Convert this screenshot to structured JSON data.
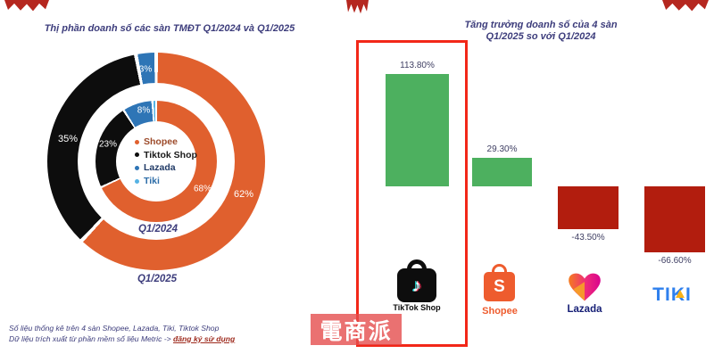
{
  "titles": {
    "left": "Thị phần doanh số các sàn TMĐT Q1/2024 và Q1/2025",
    "right_line1": "Tăng trưởng doanh số của 4 sàn",
    "right_line2": "Q1/2025 so với Q1/2024"
  },
  "chart_data": [
    {
      "type": "pie",
      "subtype": "double-ring-donut",
      "title": "Thị phần doanh số các sàn TMĐT Q1/2024 và Q1/2025",
      "legend": [
        "Shopee",
        "Tiktok Shop",
        "Lazada",
        "Tiki"
      ],
      "colors": [
        "#e0602e",
        "#0d0d0d",
        "#2e75b6",
        "#56b3e4"
      ],
      "legend_text_colors": [
        "#9c4a2a",
        "#1a1a1a",
        "#203a66",
        "#2d6da8"
      ],
      "rings": [
        {
          "name": "Q1/2024",
          "position": "inner",
          "categories": [
            "Shopee",
            "Tiktok Shop",
            "Lazada",
            "Tiki"
          ],
          "values": [
            68,
            23,
            8,
            1
          ]
        },
        {
          "name": "Q1/2025",
          "position": "outer",
          "categories": [
            "Shopee",
            "Tiktok Shop",
            "Lazada",
            "Tiki"
          ],
          "values": [
            62,
            35,
            3,
            0
          ]
        }
      ],
      "ring_labels": {
        "inner": [
          "68%",
          "23%",
          "8%"
        ],
        "outer": [
          "62%",
          "35%",
          "3%"
        ]
      },
      "legend_position": "center"
    },
    {
      "type": "bar",
      "title": "Tăng trưởng doanh số của 4 sàn Q1/2025 so với Q1/2024",
      "categories": [
        "TikTok Shop",
        "Shopee",
        "Lazada",
        "Tiki"
      ],
      "values": [
        113.8,
        29.3,
        -43.5,
        -66.6
      ],
      "labels": [
        "113.80%",
        "29.30%",
        "-43.50%",
        "-66.60%"
      ],
      "colors": [
        "#4db05f",
        "#4db05f",
        "#b21d0e",
        "#b21d0e"
      ],
      "ylim": [
        -80,
        130
      ],
      "grid": false,
      "highlight": "TikTok Shop",
      "highlight_color": "#f22718"
    }
  ],
  "logos": {
    "tiktok": "TikTok Shop",
    "tiktok_note": "♪",
    "shopee": "Shopee",
    "shopee_s": "S",
    "lazada": "Lazada",
    "tiki": "TIKI"
  },
  "footnote": {
    "line1": "Số liệu thống kê trên 4 sàn Shopee, Lazada, Tiki, Tiktok Shop",
    "line2": "Dữ liệu trích xuất từ phần mềm số liệu Metric -> ",
    "link": "đăng ký sử dụng"
  },
  "watermark": "電商派"
}
